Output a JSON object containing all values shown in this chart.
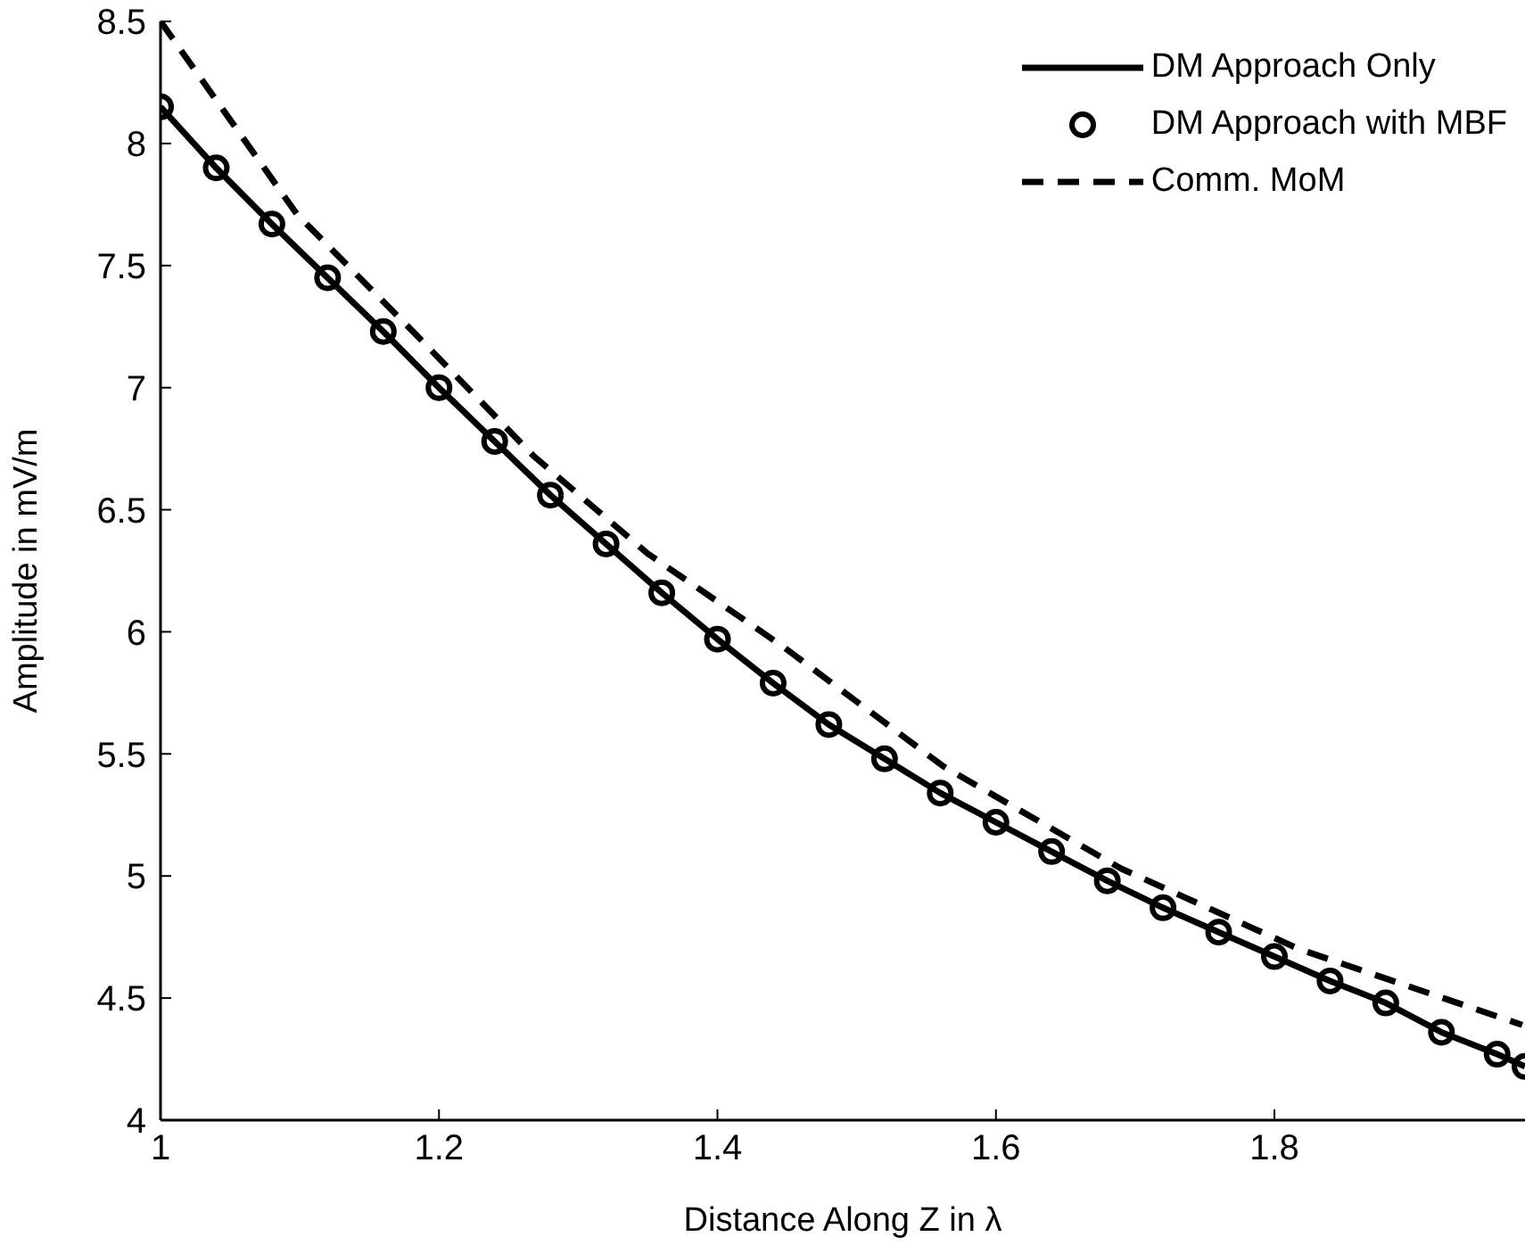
{
  "chart_data": {
    "type": "line",
    "xlabel": "Distance Along Z in λ",
    "ylabel": "Amplitude in mV/m",
    "xlim": [
      1,
      1.98
    ],
    "xticks": [
      1,
      1.2,
      1.4,
      1.6,
      1.8
    ],
    "ylim": [
      4,
      8.5
    ],
    "yticks": [
      4,
      4.5,
      5,
      5.5,
      6,
      6.5,
      7,
      7.5,
      8,
      8.5
    ],
    "grid": false,
    "legend": "top right",
    "series": [
      {
        "name": "DM Approach Only",
        "color": "#000000",
        "line_style": "solid",
        "marker": "none",
        "x": [
          1,
          1.04,
          1.08,
          1.12,
          1.16,
          1.2,
          1.24,
          1.28,
          1.32,
          1.36,
          1.4,
          1.44,
          1.48,
          1.52,
          1.56,
          1.6,
          1.64,
          1.68,
          1.72,
          1.76,
          1.8,
          1.84,
          1.88,
          1.92,
          1.96,
          1.98
        ],
        "values": [
          8.15,
          7.9,
          7.67,
          7.45,
          7.23,
          7.0,
          6.78,
          6.56,
          6.36,
          6.16,
          5.97,
          5.79,
          5.62,
          5.48,
          5.34,
          5.22,
          5.1,
          4.98,
          4.87,
          4.77,
          4.67,
          4.57,
          4.48,
          4.36,
          4.27,
          4.22
        ]
      },
      {
        "name": "DM Approach with MBF",
        "type": "scatter",
        "color": "#000000",
        "marker": "circle",
        "x": [
          1,
          1.04,
          1.08,
          1.12,
          1.16,
          1.2,
          1.24,
          1.28,
          1.32,
          1.36,
          1.4,
          1.44,
          1.48,
          1.52,
          1.56,
          1.6,
          1.64,
          1.68,
          1.72,
          1.76,
          1.8,
          1.84,
          1.88,
          1.92,
          1.96,
          1.98
        ],
        "values": [
          8.15,
          7.9,
          7.67,
          7.45,
          7.23,
          7.0,
          6.78,
          6.56,
          6.36,
          6.16,
          5.97,
          5.79,
          5.62,
          5.48,
          5.34,
          5.22,
          5.1,
          4.98,
          4.87,
          4.77,
          4.67,
          4.57,
          4.48,
          4.36,
          4.27,
          4.22
        ]
      },
      {
        "name": "Comm. MoM",
        "color": "#000000",
        "line_style": "dashed",
        "marker": "none",
        "x": [
          1,
          1.098,
          1.183,
          1.268,
          1.35,
          1.447,
          1.562,
          1.69,
          1.818,
          1.978
        ],
        "values": [
          8.5,
          7.71,
          7.22,
          6.72,
          6.32,
          5.94,
          5.45,
          5.03,
          4.7,
          4.39
        ]
      }
    ]
  }
}
